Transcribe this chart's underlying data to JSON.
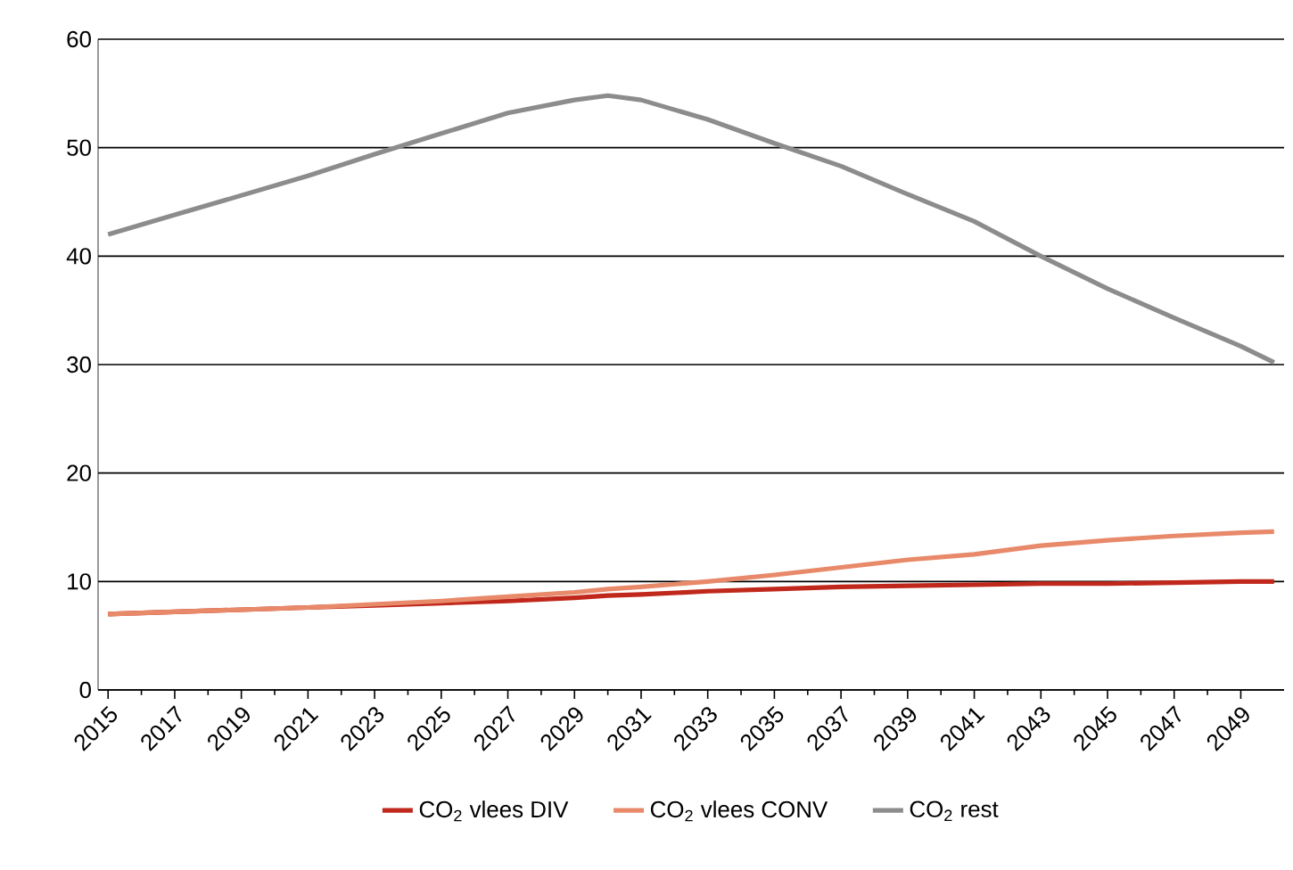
{
  "chart_data": {
    "type": "line",
    "x": [
      2015,
      2017,
      2019,
      2021,
      2023,
      2025,
      2027,
      2029,
      2030,
      2031,
      2033,
      2035,
      2037,
      2039,
      2041,
      2043,
      2045,
      2047,
      2049,
      2050
    ],
    "series": [
      {
        "name": "CO$_{2}$ vlees DIV",
        "color": "#c0281c",
        "values": [
          7.0,
          7.2,
          7.4,
          7.6,
          7.8,
          8.0,
          8.2,
          8.5,
          8.7,
          8.8,
          9.1,
          9.3,
          9.5,
          9.6,
          9.7,
          9.8,
          9.8,
          9.9,
          10.0,
          10.0
        ]
      },
      {
        "name": "CO$_{2}$ vlees CONV",
        "color": "#e8896a",
        "values": [
          7.0,
          7.2,
          7.4,
          7.6,
          7.9,
          8.2,
          8.6,
          9.0,
          9.3,
          9.5,
          10.0,
          10.6,
          11.3,
          12.0,
          12.5,
          13.3,
          13.8,
          14.2,
          14.5,
          14.6
        ]
      },
      {
        "name": "CO$_{2}$ rest",
        "color": "#8c8c8c",
        "values": [
          42,
          43.8,
          45.6,
          47.4,
          49.4,
          51.3,
          53.2,
          54.4,
          54.8,
          54.4,
          52.6,
          50.4,
          48.3,
          45.7,
          43.2,
          40,
          37,
          34.3,
          31.7,
          30.2
        ]
      }
    ],
    "xlim": [
      2014.7,
      2050.3
    ],
    "xticks": [
      2015,
      2017,
      2019,
      2021,
      2023,
      2025,
      2027,
      2029,
      2031,
      2033,
      2035,
      2037,
      2039,
      2041,
      2043,
      2045,
      2047,
      2049
    ],
    "ylim": [
      0,
      60
    ],
    "yticks": [
      0,
      10,
      20,
      30,
      40,
      50,
      60
    ],
    "grid": "y",
    "legend": "bottom"
  }
}
